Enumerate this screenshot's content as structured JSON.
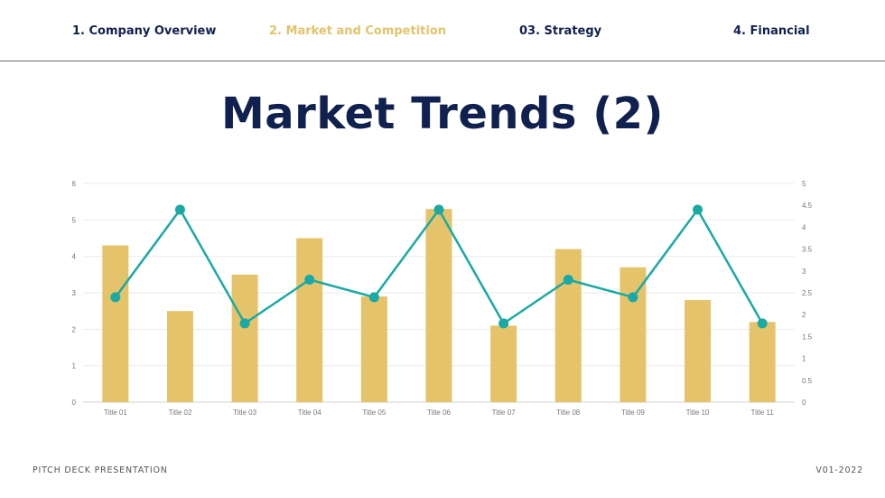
{
  "nav": {
    "items": [
      {
        "label": "1. Company Overview",
        "active": false
      },
      {
        "label": "2. Market and Competition",
        "active": true
      },
      {
        "label": "03. Strategy",
        "active": false
      },
      {
        "label": "4. Financial",
        "active": false
      }
    ]
  },
  "page": {
    "title": "Market Trends (2)"
  },
  "footer": {
    "left": "PITCH DECK PRESENTATION",
    "right": "V01-2022"
  },
  "colors": {
    "bar": "#e5c36b",
    "line": "#1aa9a4",
    "navy": "#11214f",
    "accent": "#e3c36c"
  },
  "chart_data": {
    "type": "bar",
    "categories": [
      "Title 01",
      "Title 02",
      "Title 03",
      "Title 04",
      "Title 05",
      "Title 06",
      "Title 07",
      "Title 08",
      "Title 09",
      "Title 10",
      "Title 11"
    ],
    "series": [
      {
        "type": "bar",
        "axis": "left",
        "values": [
          4.3,
          2.5,
          3.5,
          4.5,
          2.9,
          5.3,
          2.1,
          4.2,
          3.7,
          2.8,
          2.2
        ]
      },
      {
        "type": "line",
        "axis": "right",
        "values": [
          2.4,
          4.4,
          1.8,
          2.8,
          2.4,
          4.4,
          1.8,
          2.8,
          2.4,
          4.4,
          1.8
        ]
      }
    ],
    "y_left": {
      "min": 0,
      "max": 6,
      "ticks": [
        0,
        1,
        2,
        3,
        4,
        5,
        6
      ]
    },
    "y_right": {
      "min": 0,
      "max": 5,
      "ticks": [
        0,
        0.5,
        1,
        1.5,
        2,
        2.5,
        3,
        3.5,
        4,
        4.5,
        5
      ]
    },
    "grid": true,
    "legend": "none"
  }
}
